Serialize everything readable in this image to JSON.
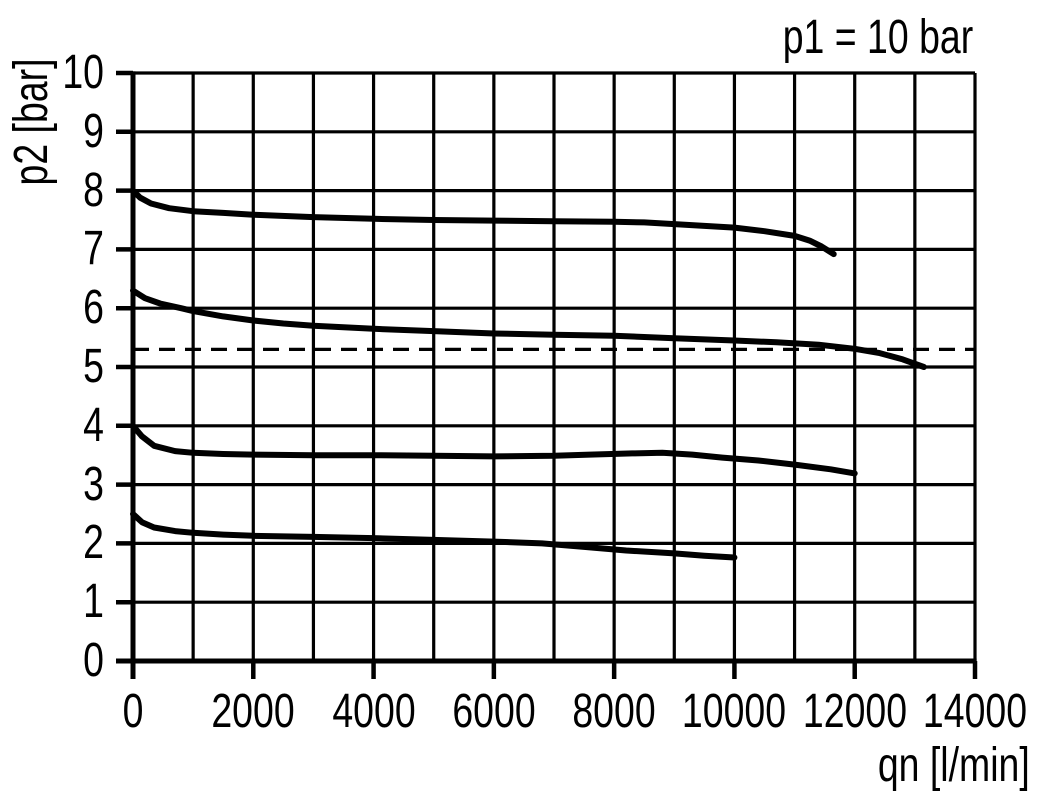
{
  "figure": {
    "background": "#ffffff",
    "ink": "#000000"
  },
  "chart_data": {
    "type": "line",
    "title": "p1 = 10 bar",
    "xlabel": "qn [l/min]",
    "ylabel": "p2 [bar]",
    "xlim": [
      0,
      14000
    ],
    "ylim": [
      0,
      10
    ],
    "x_grid_step": 1000,
    "y_grid_step": 1,
    "x_tick_step": 2000,
    "x_tick_labels": [
      "0",
      "2000",
      "4000",
      "6000",
      "8000",
      "10000",
      "12000",
      "14000"
    ],
    "y_tick_labels": [
      "0",
      "1",
      "2",
      "3",
      "4",
      "5",
      "6",
      "7",
      "8",
      "9",
      "10"
    ],
    "grid": true,
    "legend": "none",
    "colors": {
      "ink": "#000000",
      "background": "#ffffff"
    },
    "reference_line": {
      "y": 5.3,
      "style": "dashed",
      "x_start": 0,
      "x_end": 14000
    },
    "series": [
      {
        "name": "curve p2(0) = 8.0 bar",
        "points": [
          [
            0,
            8.0
          ],
          [
            120,
            7.88
          ],
          [
            300,
            7.78
          ],
          [
            600,
            7.7
          ],
          [
            1000,
            7.65
          ],
          [
            1500,
            7.62
          ],
          [
            2000,
            7.59
          ],
          [
            3000,
            7.55
          ],
          [
            4000,
            7.52
          ],
          [
            5000,
            7.5
          ],
          [
            6000,
            7.49
          ],
          [
            7000,
            7.48
          ],
          [
            8000,
            7.47
          ],
          [
            8500,
            7.46
          ],
          [
            9000,
            7.43
          ],
          [
            9500,
            7.4
          ],
          [
            10000,
            7.37
          ],
          [
            10500,
            7.31
          ],
          [
            11000,
            7.23
          ],
          [
            11250,
            7.15
          ],
          [
            11450,
            7.05
          ],
          [
            11650,
            6.92
          ]
        ]
      },
      {
        "name": "curve p2(0) = 6.3 bar",
        "points": [
          [
            0,
            6.3
          ],
          [
            200,
            6.17
          ],
          [
            450,
            6.08
          ],
          [
            800,
            6.0
          ],
          [
            1000,
            5.95
          ],
          [
            1500,
            5.86
          ],
          [
            2000,
            5.79
          ],
          [
            2500,
            5.74
          ],
          [
            3000,
            5.7
          ],
          [
            4000,
            5.65
          ],
          [
            5000,
            5.61
          ],
          [
            6000,
            5.57
          ],
          [
            7000,
            5.55
          ],
          [
            8000,
            5.53
          ],
          [
            9000,
            5.49
          ],
          [
            10000,
            5.45
          ],
          [
            10700,
            5.42
          ],
          [
            11400,
            5.38
          ],
          [
            12000,
            5.31
          ],
          [
            12400,
            5.24
          ],
          [
            12800,
            5.13
          ],
          [
            13150,
            5.0
          ]
        ]
      },
      {
        "name": "curve p2(0) = 4.0 bar",
        "points": [
          [
            0,
            4.0
          ],
          [
            150,
            3.82
          ],
          [
            350,
            3.66
          ],
          [
            700,
            3.57
          ],
          [
            1000,
            3.54
          ],
          [
            1500,
            3.52
          ],
          [
            2000,
            3.51
          ],
          [
            3000,
            3.5
          ],
          [
            4000,
            3.5
          ],
          [
            5000,
            3.49
          ],
          [
            6000,
            3.48
          ],
          [
            7000,
            3.49
          ],
          [
            7600,
            3.51
          ],
          [
            8300,
            3.53
          ],
          [
            8800,
            3.54
          ],
          [
            9300,
            3.51
          ],
          [
            9800,
            3.46
          ],
          [
            10400,
            3.41
          ],
          [
            11000,
            3.34
          ],
          [
            11600,
            3.26
          ],
          [
            12000,
            3.19
          ]
        ]
      },
      {
        "name": "curve p2(0) = 2.5 bar",
        "points": [
          [
            0,
            2.5
          ],
          [
            150,
            2.36
          ],
          [
            350,
            2.27
          ],
          [
            700,
            2.21
          ],
          [
            1000,
            2.18
          ],
          [
            1500,
            2.15
          ],
          [
            2000,
            2.13
          ],
          [
            3000,
            2.11
          ],
          [
            4000,
            2.09
          ],
          [
            5000,
            2.06
          ],
          [
            6000,
            2.03
          ],
          [
            6800,
            2.0
          ],
          [
            7500,
            1.94
          ],
          [
            8200,
            1.88
          ],
          [
            9000,
            1.83
          ],
          [
            9500,
            1.79
          ],
          [
            10000,
            1.76
          ]
        ]
      }
    ]
  }
}
